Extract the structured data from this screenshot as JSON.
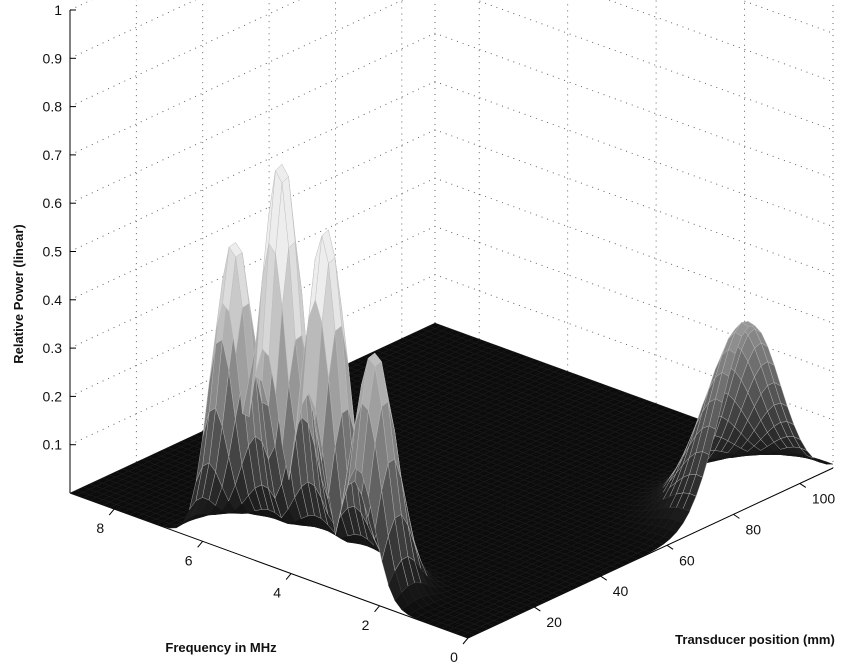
{
  "chart_data": {
    "type": "surface",
    "title": "",
    "xlabel": "Transducer position (mm)",
    "ylabel": "Frequency in MHz",
    "zlabel": "Relative Power (linear)",
    "xlim": [
      0,
      110
    ],
    "ylim": [
      0,
      9
    ],
    "zlim": [
      0,
      1
    ],
    "x_ticks": [
      "20",
      "40",
      "60",
      "80",
      "100"
    ],
    "y_ticks": [
      "0",
      "2",
      "4",
      "6",
      "8"
    ],
    "z_ticks": [
      "0.1",
      "0.2",
      "0.3",
      "0.4",
      "0.5",
      "0.6",
      "0.7",
      "0.8",
      "0.9",
      "1"
    ],
    "grid": true,
    "peaks": [
      {
        "x": 5,
        "y": 4.6,
        "z": 0.83
      },
      {
        "x": 3,
        "y": 5.5,
        "z": 0.64
      },
      {
        "x": 5,
        "y": 3.6,
        "z": 0.72
      },
      {
        "x": 5,
        "y": 2.5,
        "z": 0.5
      },
      {
        "x": 85,
        "y": 0.1,
        "z": 0.38
      }
    ],
    "colors": {
      "surface_low": "#000000",
      "surface_high": "#f4f4f4",
      "grid": "#555555"
    }
  }
}
